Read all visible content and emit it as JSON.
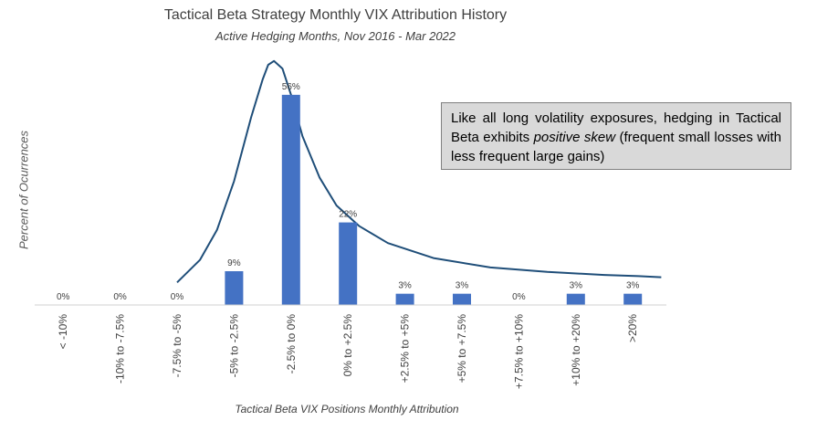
{
  "chart_data": {
    "type": "bar",
    "title": "Tactical Beta Strategy Monthly VIX Attribution History",
    "subtitle": "Active Hedging Months, Nov 2016 - Mar 2022",
    "xlabel": "Tactical Beta VIX Positions Monthly Attribution",
    "ylabel": "Percent of Ocurrences",
    "categories": [
      "< -10%",
      "-10% to -7.5%",
      "-7.5% to -5%",
      "-5% to -2.5%",
      "-2.5% to 0%",
      "0% to +2.5%",
      "+2.5% to +5%",
      "+5% to +7.5%",
      "+7.5% to +10%",
      "+10% to +20%",
      ">20%"
    ],
    "values": [
      0,
      0,
      0,
      9,
      56,
      22,
      3,
      3,
      0,
      3,
      3
    ],
    "data_labels": [
      "0%",
      "0%",
      "0%",
      "9%",
      "56%",
      "22%",
      "3%",
      "3%",
      "0%",
      "3%",
      "3%"
    ],
    "ylim": [
      0,
      65
    ],
    "grid": false,
    "legend": "none",
    "bar_color": "#4472c4",
    "curve_color": "#1f4e79",
    "overlay_curve": "positive skew distribution curve",
    "annotation": {
      "text_before": "Like all long volatility exposures, hedging in Tactical Beta exhibits ",
      "text_emph": "positive skew",
      "text_after": " (frequent small losses with less frequent large gains)"
    }
  }
}
